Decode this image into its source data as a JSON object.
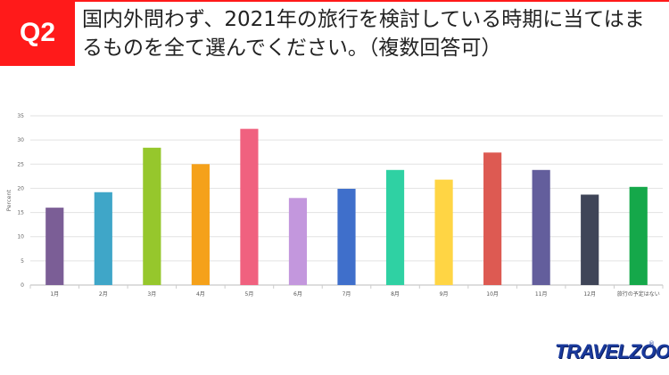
{
  "header": {
    "badge": "Q2",
    "question": "国内外問わず、2021年の旅行を検討している時期に当てはまるものを全て選んでください。（複数回答可）"
  },
  "brand": {
    "logo_text": "TRAVELZOO",
    "registered": "®"
  },
  "chart_data": {
    "type": "bar",
    "ylabel": "Percent",
    "ylim": [
      0,
      35
    ],
    "yticks": [
      0,
      5,
      10,
      15,
      20,
      25,
      30,
      35
    ],
    "grid": true,
    "categories": [
      "1月",
      "2月",
      "3月",
      "4月",
      "5月",
      "6月",
      "7月",
      "8月",
      "9月",
      "10月",
      "11月",
      "12月",
      "旅行の予定はない"
    ],
    "values": [
      16.0,
      19.2,
      28.4,
      25.0,
      32.3,
      18.0,
      19.9,
      23.8,
      21.8,
      27.4,
      23.8,
      18.7,
      20.3
    ],
    "colors": [
      "#7b5e96",
      "#3fa6c8",
      "#96c72c",
      "#f5a11a",
      "#f0617f",
      "#c397dd",
      "#3f6fcb",
      "#2fd1a3",
      "#ffd544",
      "#dd5a52",
      "#635e9c",
      "#3f4558",
      "#15a84a"
    ]
  }
}
